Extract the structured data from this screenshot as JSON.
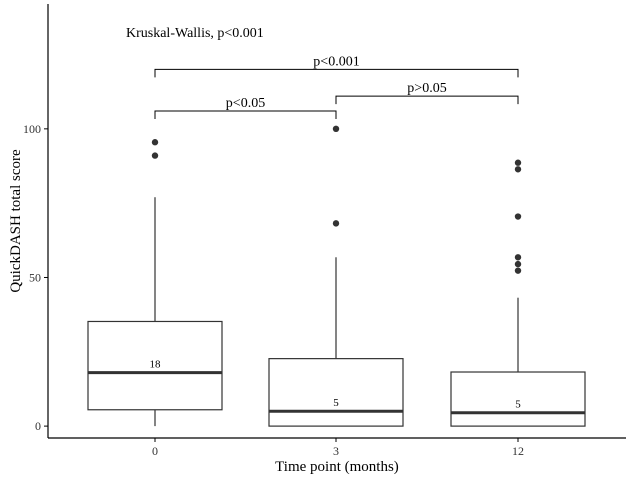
{
  "chart_data": {
    "type": "box",
    "title": "",
    "xlabel": "Time point (months)",
    "ylabel": "QuickDASH total score",
    "ylim": [
      -4,
      142
    ],
    "yticks": [
      0,
      50,
      100
    ],
    "grid": false,
    "annotation": "Kruskal-Wallis, p<0.001",
    "categories": [
      "0",
      "3",
      "12"
    ],
    "boxes": [
      {
        "category": "0",
        "whisker_low": 0,
        "q1": 5.5,
        "median": 18,
        "q3": 35.2,
        "whisker_high": 77,
        "outliers": [
          95.5,
          91
        ],
        "median_label": "18"
      },
      {
        "category": "3",
        "whisker_low": 0,
        "q1": 0,
        "median": 5,
        "q3": 22.7,
        "whisker_high": 56.8,
        "outliers": [
          100,
          68.2
        ],
        "median_label": "5"
      },
      {
        "category": "12",
        "whisker_low": 0,
        "q1": 0,
        "median": 4.5,
        "q3": 18.2,
        "whisker_high": 43.2,
        "outliers": [
          88.6,
          86.4,
          70.5,
          56.8,
          54.5,
          52.3
        ],
        "median_label": "5"
      }
    ],
    "comparisons": [
      {
        "from": "0",
        "to": "3",
        "y": 106,
        "label": "p<0.05"
      },
      {
        "from": "3",
        "to": "12",
        "y": 111,
        "label": "p>0.05"
      },
      {
        "from": "0",
        "to": "12",
        "y": 120,
        "label": "p<0.001"
      }
    ]
  }
}
